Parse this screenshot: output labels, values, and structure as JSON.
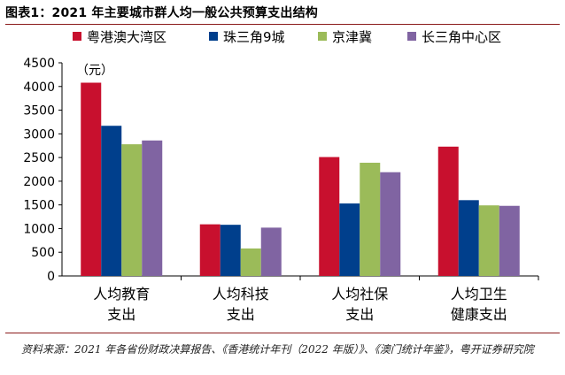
{
  "figure": {
    "title": "图表1：2021 年主要城市群人均一般公共预算支出结构",
    "source": "资料来源：2021 年各省份财政决算报告、《香港统计年刊（2022 年版）》、《澳门统计年鉴》，粤开证券研究院"
  },
  "chart_data": {
    "type": "bar",
    "ylabel": "（元）",
    "ylim": [
      0,
      4500
    ],
    "yticks": [
      0,
      500,
      1000,
      1500,
      2000,
      2500,
      3000,
      3500,
      4000,
      4500
    ],
    "grid": false,
    "legend_position": "top",
    "categories": [
      [
        "人均教育",
        "支出"
      ],
      [
        "人均科技",
        "支出"
      ],
      [
        "人均社保",
        "支出"
      ],
      [
        "人均卫生",
        "健康支出"
      ]
    ],
    "series": [
      {
        "name": "粤港澳大湾区",
        "color": "#c8102e",
        "values": [
          4080,
          1090,
          2510,
          2730
        ]
      },
      {
        "name": "珠三角9城",
        "color": "#003f8c",
        "values": [
          3170,
          1080,
          1530,
          1600
        ]
      },
      {
        "name": "京津冀",
        "color": "#9bbb59",
        "values": [
          2780,
          580,
          2390,
          1490
        ]
      },
      {
        "name": "长三角中心区",
        "color": "#8064a2",
        "values": [
          2860,
          1020,
          2190,
          1480
        ]
      }
    ]
  }
}
